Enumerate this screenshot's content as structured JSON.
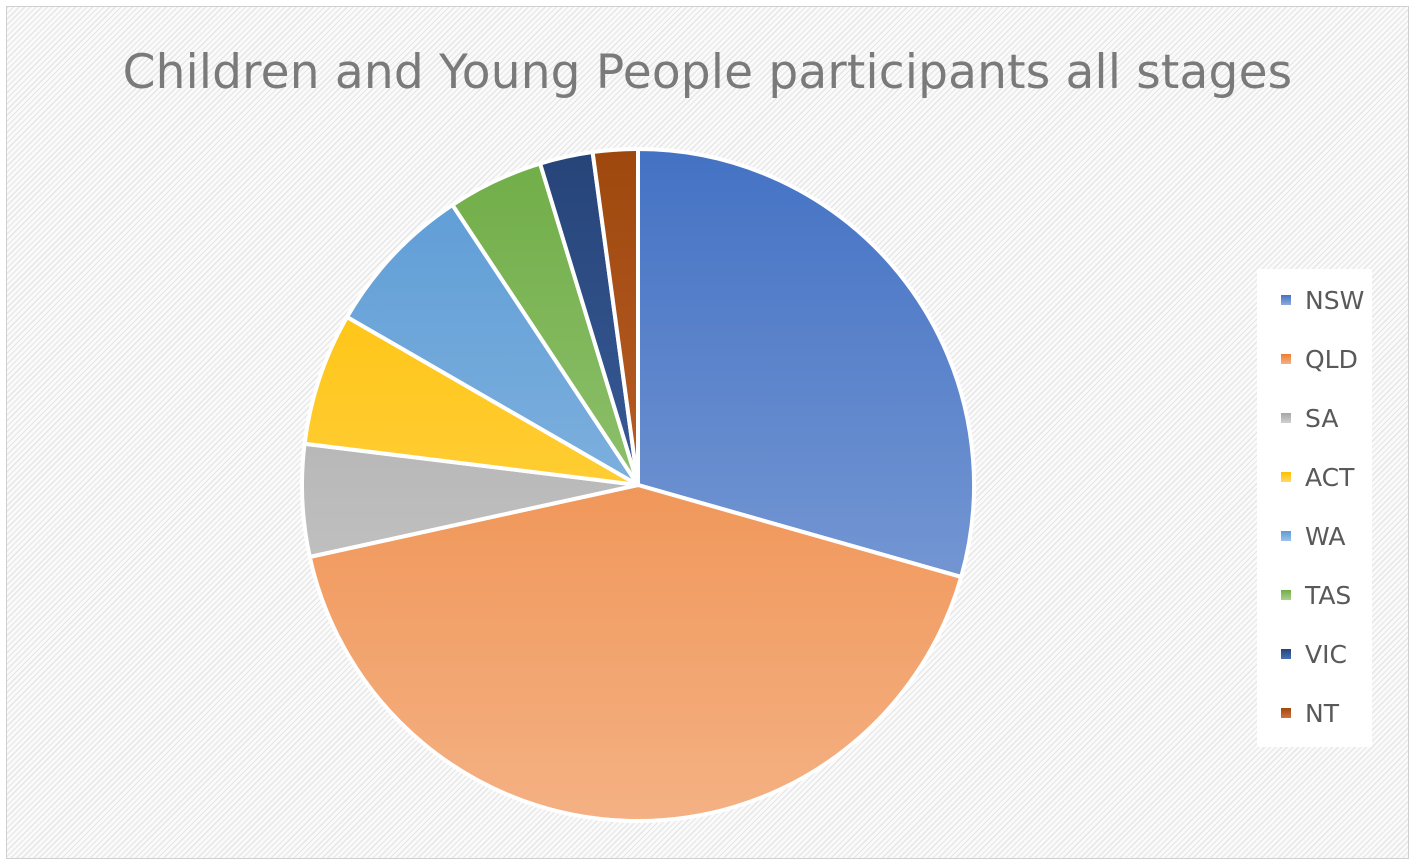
{
  "chart_data": {
    "type": "pie",
    "title": "Children and Young People participants all stages",
    "legend_position": "right",
    "slices": [
      {
        "label": "NSW",
        "value": 30.0,
        "color": "#4472c4",
        "light": "#8eaadb"
      },
      {
        "label": "QLD",
        "value": 43.0,
        "color": "#ed7d31",
        "light": "#f4b183"
      },
      {
        "label": "SA",
        "value": 5.5,
        "color": "#a5a5a5",
        "light": "#d0d0d0"
      },
      {
        "label": "ACT",
        "value": 6.5,
        "color": "#ffc000",
        "light": "#ffd966"
      },
      {
        "label": "WA",
        "value": 7.5,
        "color": "#5b9bd5",
        "light": "#9dc3e6"
      },
      {
        "label": "TAS",
        "value": 4.7,
        "color": "#70ad47",
        "light": "#a9d18e"
      },
      {
        "label": "VIC",
        "value": 2.6,
        "color": "#264478",
        "light": "#4a6fb5"
      },
      {
        "label": "NT",
        "value": 2.2,
        "color": "#9e480e",
        "light": "#d0703a"
      }
    ]
  }
}
